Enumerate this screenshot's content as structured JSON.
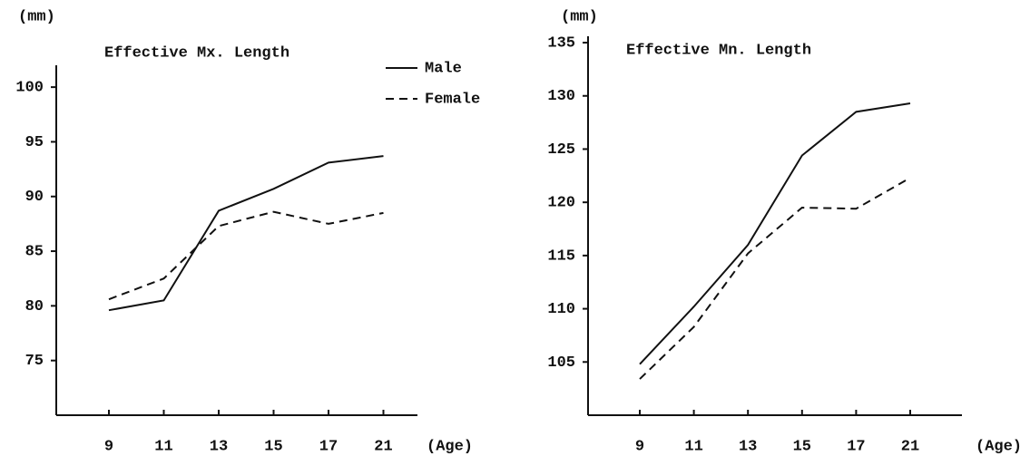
{
  "chart_data": [
    {
      "type": "line",
      "title": "Effective Mx. Length",
      "y_unit": "(mm)",
      "x_label": "(Age)",
      "categories": [
        "9",
        "11",
        "13",
        "15",
        "17",
        "21"
      ],
      "ylim": [
        70,
        102
      ],
      "yticks": [
        75,
        80,
        85,
        90,
        95,
        100
      ],
      "legend": "top-right",
      "series": [
        {
          "name": "Male",
          "color": "#111111",
          "dash": "solid",
          "values": [
            79.6,
            80.5,
            88.7,
            90.7,
            93.1,
            93.7
          ]
        },
        {
          "name": "Female",
          "color": "#111111",
          "dash": "dashed",
          "values": [
            80.6,
            82.5,
            87.3,
            88.6,
            87.5,
            88.5
          ]
        }
      ]
    },
    {
      "type": "line",
      "title": "Effective Mn. Length",
      "y_unit": "(mm)",
      "x_label": "(Age)",
      "categories": [
        "9",
        "11",
        "13",
        "15",
        "17",
        "21"
      ],
      "ylim": [
        100,
        135.6
      ],
      "yticks": [
        105,
        110,
        115,
        120,
        125,
        130,
        135
      ],
      "series": [
        {
          "color": "#111111",
          "dash": "solid",
          "values": [
            104.8,
            110.2,
            116.0,
            124.4,
            128.5,
            129.3
          ]
        },
        {
          "color": "#111111",
          "dash": "dashed",
          "values": [
            103.4,
            108.3,
            115.2,
            119.5,
            119.4,
            122.3
          ]
        }
      ]
    }
  ]
}
